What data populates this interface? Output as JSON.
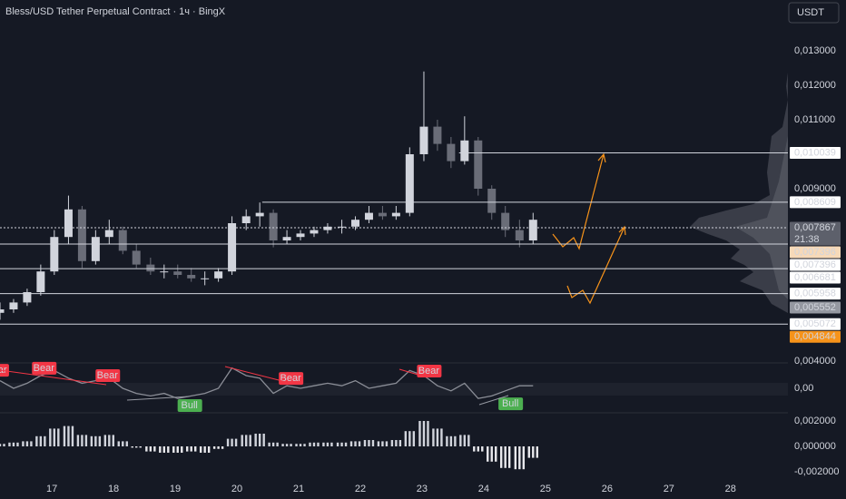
{
  "chart_data": [
    {
      "type": "candlestick",
      "title": "Bless/USD Tether Perpetual Contract · 1ч · BingX",
      "currency": "USDT",
      "x": [
        16.16,
        16.38,
        16.6,
        16.82,
        17.04,
        17.27,
        17.49,
        17.71,
        17.93,
        18.15,
        18.37,
        18.6,
        18.82,
        19.04,
        19.26,
        19.48,
        19.7,
        19.92,
        20.15,
        20.37,
        20.59,
        20.81,
        21.03,
        21.25,
        21.47,
        21.7,
        21.92,
        22.14,
        22.36,
        22.58,
        22.8,
        23.03,
        23.25,
        23.47,
        23.69,
        23.91,
        24.13,
        24.35,
        24.58,
        24.8
      ],
      "open": [
        0.0054,
        0.0055,
        0.0057,
        0.006,
        0.0066,
        0.0076,
        0.0084,
        0.0069,
        0.0076,
        0.0078,
        0.0072,
        0.0068,
        0.0066,
        0.0066,
        0.0065,
        0.0064,
        0.0064,
        0.0066,
        0.008,
        0.0082,
        0.0083,
        0.0075,
        0.0076,
        0.0077,
        0.0078,
        0.0079,
        0.0079,
        0.0081,
        0.0083,
        0.0082,
        0.0083,
        0.01,
        0.0108,
        0.0103,
        0.0098,
        0.0104,
        0.009,
        0.0083,
        0.0078,
        0.0075
      ],
      "high": [
        0.0057,
        0.0058,
        0.0061,
        0.0068,
        0.0078,
        0.0088,
        0.0085,
        0.0078,
        0.0081,
        0.0079,
        0.0074,
        0.007,
        0.0068,
        0.0068,
        0.0067,
        0.0066,
        0.0067,
        0.0082,
        0.0084,
        0.0086,
        0.0084,
        0.0078,
        0.0078,
        0.0079,
        0.008,
        0.0081,
        0.0082,
        0.0085,
        0.0085,
        0.0085,
        0.0102,
        0.0124,
        0.011,
        0.0105,
        0.0111,
        0.0105,
        0.0091,
        0.0085,
        0.0081,
        0.0083
      ],
      "low": [
        0.0052,
        0.0054,
        0.0056,
        0.0059,
        0.0065,
        0.0074,
        0.0067,
        0.0068,
        0.0074,
        0.0071,
        0.0067,
        0.0065,
        0.0064,
        0.0064,
        0.0063,
        0.0062,
        0.0063,
        0.0065,
        0.0078,
        0.0079,
        0.0073,
        0.0074,
        0.0075,
        0.0076,
        0.0077,
        0.0077,
        0.0078,
        0.008,
        0.0081,
        0.0081,
        0.0082,
        0.0098,
        0.0101,
        0.0096,
        0.0097,
        0.0088,
        0.0081,
        0.0076,
        0.0073,
        0.0074
      ],
      "close": [
        0.0055,
        0.0057,
        0.006,
        0.0066,
        0.0076,
        0.0084,
        0.0069,
        0.0076,
        0.0078,
        0.0072,
        0.0068,
        0.0066,
        0.0066,
        0.0065,
        0.0064,
        0.0064,
        0.0066,
        0.008,
        0.0082,
        0.0083,
        0.0075,
        0.0076,
        0.0077,
        0.0078,
        0.0079,
        0.0079,
        0.0081,
        0.0083,
        0.0082,
        0.0083,
        0.01,
        0.0108,
        0.0103,
        0.0098,
        0.0104,
        0.009,
        0.0083,
        0.0078,
        0.0075,
        0.0081
      ],
      "up_color": "#d1d4dc",
      "down_color": "#6a6d78",
      "xlim": [
        16.16,
        28.93
      ],
      "xticks": [
        17,
        18,
        19,
        20,
        21,
        22,
        23,
        24,
        25,
        26,
        27,
        28
      ],
      "ylim": [
        0.004,
        0.013421
      ],
      "yticks": [
        {
          "value": 0.013,
          "label": "0,013000"
        },
        {
          "value": 0.012,
          "label": "0,012000"
        },
        {
          "value": 0.011,
          "label": "0,011000"
        },
        {
          "value": 0.009,
          "label": "0,009000"
        },
        {
          "value": 0.004,
          "label": "0,004000"
        }
      ],
      "price_labels": [
        {
          "value": 0.010039,
          "label": "0,010039",
          "bg": "#ffffff",
          "line_from": 23.6
        },
        {
          "value": 0.008609,
          "label": "0,008609",
          "bg": "#ffffff",
          "line_from": 20.41
        },
        {
          "value": 0.007867,
          "label": "0,007867",
          "bg": "#5d606b",
          "countdown": "21:38",
          "line_from": 16.16,
          "dotted": true
        },
        {
          "value": 0.007396,
          "label": "0,007396",
          "bg": "#f7d9b8"
        },
        {
          "value": 0.007396,
          "label": "0,007396",
          "bg": "#ffffff",
          "line_from": 16.16
        },
        {
          "value": 0.006681,
          "label": "0,006681",
          "bg": "#ffffff",
          "line_from": 16.16
        },
        {
          "value": 0.005958,
          "label": "0,005958",
          "bg": "#ffffff",
          "line_from": 16.16
        },
        {
          "value": 0.005552,
          "label": "0,005552",
          "bg": "#9598a1"
        },
        {
          "value": 0.005072,
          "label": "0,005072",
          "bg": "#ffffff",
          "line_from": 16.16
        },
        {
          "value": 0.004844,
          "label": "0,004844",
          "bg": "#f7931a"
        }
      ]
    },
    {
      "type": "line",
      "color": "#8a8d96",
      "values": [
        0.3,
        0,
        0.2,
        0.5,
        0.7,
        0.4,
        0.2,
        0.3,
        0.4,
        0,
        -0.2,
        -0.3,
        -0.2,
        -0.4,
        -0.3,
        -0.2,
        0,
        0.8,
        0.5,
        0.4,
        -0.2,
        0.1,
        0,
        0.1,
        0.2,
        0.1,
        0.3,
        0,
        0.1,
        0.2,
        0.7,
        0.5,
        0.1,
        -0.1,
        0.2,
        -0.4,
        -0.3,
        -0.1,
        0.1,
        0.1
      ],
      "ylim": [
        -1,
        1
      ],
      "yticks": [
        {
          "value": 0,
          "label": "0,00"
        }
      ],
      "annotations": [
        {
          "text": "Bear",
          "x": 16.1,
          "y": 0.71
        },
        {
          "text": "Bear",
          "x": 16.87,
          "y": 0.79
        },
        {
          "text": "Bear",
          "x": 17.9,
          "y": 0.5
        },
        {
          "text": "Bull",
          "x": 19.23,
          "y": -0.68
        },
        {
          "text": "Bear",
          "x": 20.87,
          "y": 0.39
        },
        {
          "text": "Bear",
          "x": 23.11,
          "y": 0.68
        },
        {
          "text": "Bull",
          "x": 24.43,
          "y": -0.61
        }
      ]
    },
    {
      "type": "bar",
      "color": "#d1d4dc",
      "values": [
        0.0002,
        0.0003,
        0.0004,
        0.0008,
        0.0014,
        0.0016,
        0.0009,
        0.0008,
        0.0009,
        0.0004,
        -0.0001,
        -0.0004,
        -0.0005,
        -0.0005,
        -0.0004,
        -0.0005,
        -0.0002,
        0.0006,
        0.0009,
        0.001,
        0.0003,
        0.0002,
        0.0002,
        0.0003,
        0.0003,
        0.0003,
        0.0004,
        0.0005,
        0.0004,
        0.0005,
        0.0012,
        0.002,
        0.0014,
        0.0008,
        0.0009,
        -0.0004,
        -0.0012,
        -0.0017,
        -0.0018,
        -0.0009
      ],
      "ylim": [
        -0.002714,
        0.002571
      ],
      "yticks": [
        {
          "value": 0.002,
          "label": "0,002000"
        },
        {
          "value": 0,
          "label": "0,000000"
        },
        {
          "value": -0.002,
          "label": "-0,002000"
        }
      ]
    }
  ]
}
